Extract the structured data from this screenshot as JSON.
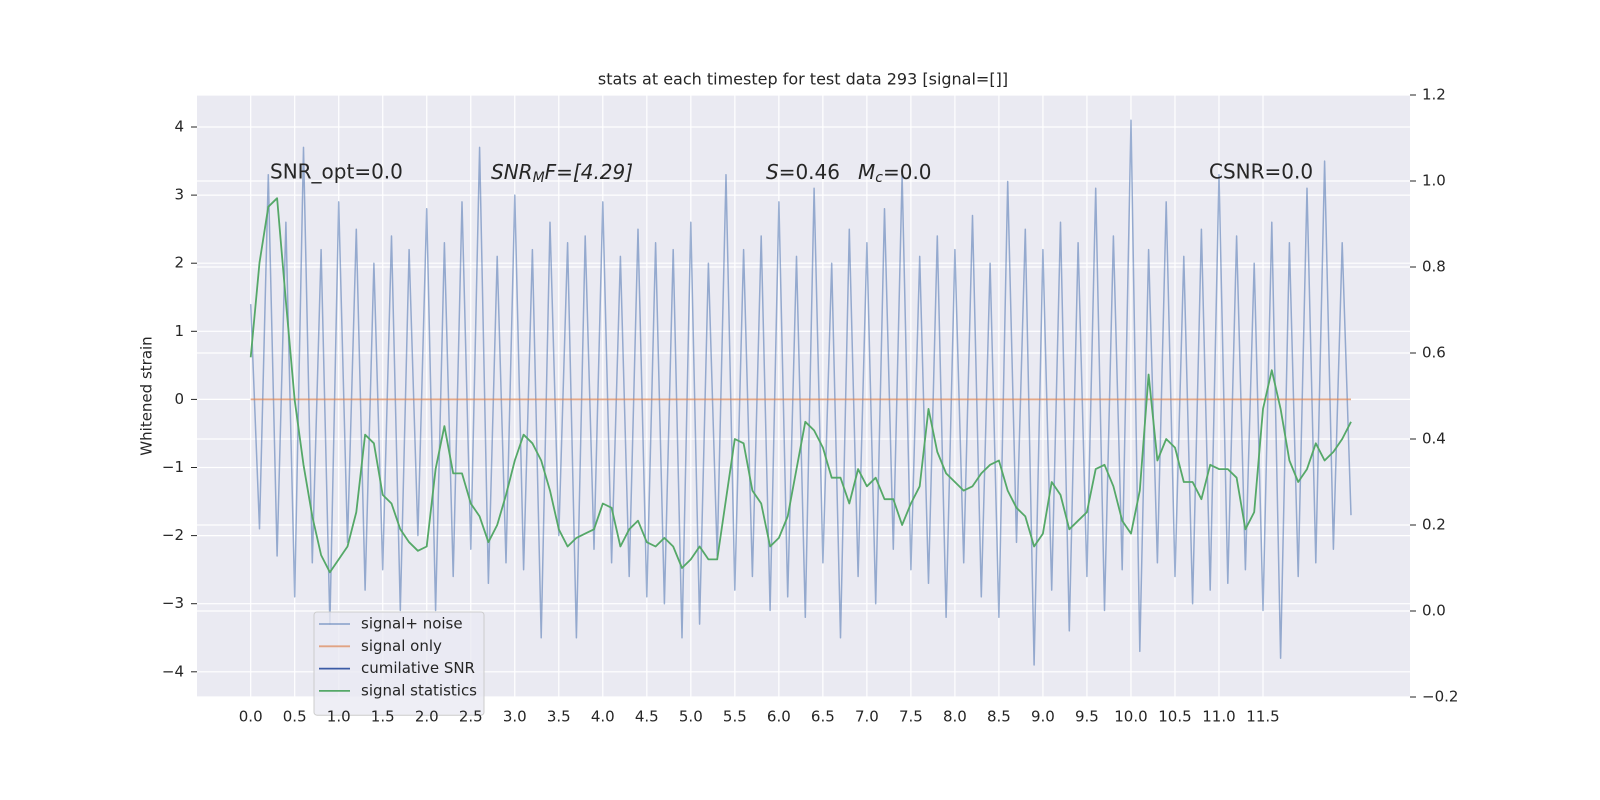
{
  "chart_data": {
    "type": "line",
    "title": "stats at each timestep for test data 293 [signal=[]]",
    "y_label": "Whitened strain",
    "xlim": [
      -0.61,
      13.17
    ],
    "ylim": [
      -4.37,
      4.47
    ],
    "y2lim": [
      -0.2,
      1.2
    ],
    "grid": true,
    "legend": "lower left",
    "xticks": [
      {
        "value": 0,
        "label": "0.0"
      },
      {
        "value": 0.5,
        "label": "0.5"
      },
      {
        "value": 1,
        "label": "1.0"
      },
      {
        "value": 1.5,
        "label": "1.5"
      },
      {
        "value": 2,
        "label": "2.0"
      },
      {
        "value": 2.5,
        "label": "2.5"
      },
      {
        "value": 3,
        "label": "3.0"
      },
      {
        "value": 3.5,
        "label": "3.5"
      },
      {
        "value": 4,
        "label": "4.0"
      },
      {
        "value": 4.5,
        "label": "4.5"
      },
      {
        "value": 5,
        "label": "5.0"
      },
      {
        "value": 5.5,
        "label": "5.5"
      },
      {
        "value": 6,
        "label": "6.0"
      },
      {
        "value": 6.5,
        "label": "6.5"
      },
      {
        "value": 7,
        "label": "7.0"
      },
      {
        "value": 7.5,
        "label": "7.5"
      },
      {
        "value": 8,
        "label": "8.0"
      },
      {
        "value": 8.5,
        "label": "8.5"
      },
      {
        "value": 9,
        "label": "9.0"
      },
      {
        "value": 9.5,
        "label": "9.5"
      },
      {
        "value": 10,
        "label": "10.0"
      },
      {
        "value": 10.5,
        "label": "10.5"
      },
      {
        "value": 11,
        "label": "11.0"
      },
      {
        "value": 11.5,
        "label": "11.5"
      }
    ],
    "yticks": [
      {
        "value": -4,
        "label": "−4"
      },
      {
        "value": -3,
        "label": "−3"
      },
      {
        "value": -2,
        "label": "−2"
      },
      {
        "value": -1,
        "label": "−1"
      },
      0,
      1,
      2,
      3,
      4
    ],
    "y2ticks": [
      {
        "value": -0.2,
        "label": "−0.2"
      },
      {
        "value": 0,
        "label": "0.0"
      },
      0.2,
      0.4,
      0.6,
      0.8,
      {
        "value": 1,
        "label": "1.0"
      },
      1.2
    ],
    "annotations": [
      {
        "text": "SNR_opt=0.0"
      },
      {
        "base": "SNR",
        "sub": "M",
        "rest": "F=[4.29]"
      },
      {
        "base": "S",
        "rest": "=0.46"
      },
      {
        "base": "M",
        "sub": "c",
        "rest": "=0.0"
      },
      {
        "text": "CSNR=0.0"
      }
    ],
    "x": [
      0,
      0.1,
      0.2,
      0.3,
      0.4,
      0.5,
      0.6,
      0.7,
      0.8,
      0.9,
      1,
      1.1,
      1.2,
      1.3,
      1.4,
      1.5,
      1.6,
      1.7,
      1.8,
      1.9,
      2,
      2.1,
      2.2,
      2.3,
      2.4,
      2.5,
      2.6,
      2.7,
      2.8,
      2.9,
      3,
      3.1,
      3.2,
      3.3,
      3.4,
      3.5,
      3.6,
      3.7,
      3.8,
      3.9,
      4,
      4.1,
      4.2,
      4.3,
      4.4,
      4.5,
      4.6,
      4.7,
      4.8,
      4.9,
      5,
      5.1,
      5.2,
      5.3,
      5.4,
      5.5,
      5.6,
      5.7,
      5.8,
      5.9,
      6,
      6.1,
      6.2,
      6.3,
      6.4,
      6.5,
      6.6,
      6.7,
      6.8,
      6.9,
      7,
      7.1,
      7.2,
      7.3,
      7.4,
      7.5,
      7.6,
      7.7,
      7.8,
      7.9,
      8,
      8.1,
      8.2,
      8.3,
      8.4,
      8.5,
      8.6,
      8.7,
      8.8,
      8.9,
      9,
      9.1,
      9.2,
      9.3,
      9.4,
      9.5,
      9.6,
      9.7,
      9.8,
      9.9,
      10,
      10.1,
      10.2,
      10.3,
      10.4,
      10.5,
      10.6,
      10.7,
      10.8,
      10.9,
      11,
      11.1,
      11.2,
      11.3,
      11.4,
      11.5,
      11.6,
      11.7,
      11.8,
      11.9,
      12,
      12.1,
      12.2,
      12.3,
      12.4,
      12.5
    ],
    "series": [
      {
        "name": "signal+ noise",
        "color": "#4c72b0",
        "values": [
          1.4,
          -1.9,
          3.3,
          -2.3,
          2.6,
          -2.9,
          3.7,
          -2.4,
          2.2,
          -3.3,
          2.9,
          -2.1,
          2.5,
          -2.8,
          2.0,
          -2.5,
          2.4,
          -3.1,
          2.2,
          -2.0,
          2.8,
          -3.1,
          2.3,
          -2.6,
          2.9,
          -2.2,
          3.7,
          -2.7,
          2.1,
          -2.4,
          3.0,
          -2.5,
          2.2,
          -3.5,
          2.6,
          -2.0,
          2.3,
          -3.5,
          2.4,
          -2.2,
          2.9,
          -2.4,
          2.1,
          -2.6,
          2.5,
          -2.9,
          2.3,
          -3.0,
          2.2,
          -3.5,
          2.6,
          -3.3,
          2.0,
          -2.3,
          3.3,
          -2.8,
          2.2,
          -2.6,
          2.4,
          -3.1,
          2.9,
          -2.9,
          2.1,
          -3.2,
          3.1,
          -2.4,
          2.0,
          -3.5,
          2.5,
          -2.6,
          2.3,
          -3.0,
          2.8,
          -2.2,
          3.3,
          -2.5,
          2.1,
          -2.7,
          2.4,
          -3.2,
          2.2,
          -2.4,
          2.7,
          -2.9,
          2.0,
          -3.2,
          3.2,
          -2.1,
          2.5,
          -3.9,
          2.2,
          -2.8,
          2.6,
          -3.4,
          2.3,
          -2.6,
          3.1,
          -3.1,
          2.4,
          -2.5,
          4.1,
          -3.7,
          2.2,
          -2.4,
          2.9,
          -2.6,
          2.1,
          -3.0,
          2.5,
          -2.8,
          3.3,
          -2.7,
          2.4,
          -2.5,
          2.0,
          -3.1,
          2.6,
          -3.8,
          2.3,
          -2.6,
          3.1,
          -2.4,
          3.5,
          -2.2,
          2.3,
          -1.7
        ]
      },
      {
        "name": "signal only",
        "color": "#dd8452",
        "x": [
          0,
          12.5
        ],
        "values": [
          0,
          0
        ]
      },
      {
        "name": "cumilative SNR",
        "color": "#3b5ba5",
        "x": [],
        "values": []
      },
      {
        "name": "signal statistics",
        "color": "#55a868",
        "axis": "y2",
        "values": [
          0.59,
          0.81,
          0.94,
          0.96,
          0.72,
          0.49,
          0.34,
          0.22,
          0.13,
          0.09,
          0.12,
          0.15,
          0.23,
          0.41,
          0.39,
          0.27,
          0.25,
          0.19,
          0.16,
          0.14,
          0.15,
          0.33,
          0.43,
          0.32,
          0.32,
          0.25,
          0.22,
          0.16,
          0.2,
          0.27,
          0.35,
          0.41,
          0.39,
          0.35,
          0.28,
          0.19,
          0.15,
          0.17,
          0.18,
          0.19,
          0.25,
          0.24,
          0.15,
          0.19,
          0.21,
          0.16,
          0.15,
          0.17,
          0.15,
          0.1,
          0.12,
          0.15,
          0.12,
          0.12,
          0.26,
          0.4,
          0.39,
          0.28,
          0.25,
          0.15,
          0.17,
          0.22,
          0.33,
          0.44,
          0.42,
          0.38,
          0.31,
          0.31,
          0.25,
          0.33,
          0.29,
          0.31,
          0.26,
          0.26,
          0.2,
          0.25,
          0.29,
          0.47,
          0.37,
          0.32,
          0.3,
          0.28,
          0.29,
          0.32,
          0.34,
          0.35,
          0.28,
          0.24,
          0.22,
          0.15,
          0.18,
          0.3,
          0.27,
          0.19,
          0.21,
          0.23,
          0.33,
          0.34,
          0.29,
          0.21,
          0.18,
          0.28,
          0.55,
          0.35,
          0.4,
          0.38,
          0.3,
          0.3,
          0.26,
          0.34,
          0.33,
          0.33,
          0.31,
          0.19,
          0.23,
          0.47,
          0.56,
          0.47,
          0.35,
          0.3,
          0.33,
          0.39,
          0.35,
          0.37,
          0.4,
          0.44
        ]
      }
    ]
  }
}
